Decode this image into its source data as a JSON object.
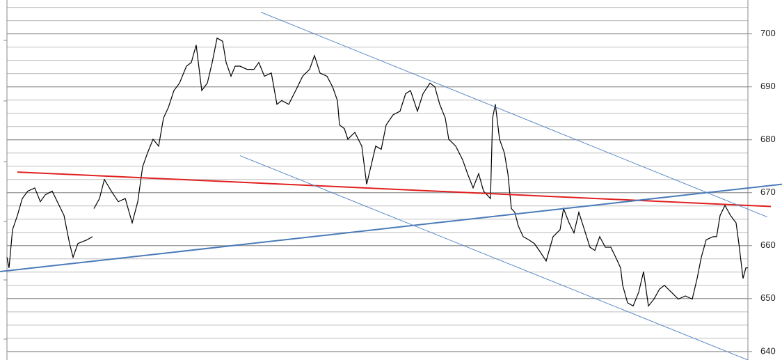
{
  "chart_data": {
    "type": "line",
    "ylim": [
      638.4,
      706.4
    ],
    "yticks": [
      640,
      650,
      660,
      670,
      680,
      690,
      700
    ],
    "grid": true,
    "xlim": [
      0,
      1065
    ],
    "price": {
      "color": "#000000",
      "x": [
        0,
        3,
        8,
        15,
        22,
        30,
        40,
        48,
        55,
        65,
        75,
        82,
        90,
        95,
        102,
        115,
        123,
        124,
        125,
        133,
        140,
        150,
        160,
        170,
        180,
        188,
        195,
        202,
        210,
        218,
        225,
        232,
        240,
        248,
        258,
        265,
        272,
        280,
        288,
        295,
        302,
        310,
        315,
        322,
        328,
        335,
        345,
        355,
        362,
        370,
        380,
        388,
        395,
        405,
        415,
        425,
        435,
        442,
        450,
        460,
        468,
        475,
        478,
        485,
        490,
        500,
        510,
        517,
        523,
        530,
        538,
        545,
        555,
        565,
        573,
        580,
        590,
        598,
        608,
        615,
        622,
        630,
        635,
        645,
        655,
        662,
        670,
        678,
        685,
        695,
        698,
        702,
        708,
        715,
        720,
        725,
        730,
        735,
        742,
        750,
        758,
        765,
        775,
        785,
        795,
        800,
        808,
        815,
        822,
        830,
        838,
        845,
        852,
        860,
        868,
        875,
        882,
        885,
        892,
        900,
        908,
        915,
        922,
        930,
        938,
        945,
        955,
        965,
        975,
        985,
        992,
        998,
        1005,
        1015,
        1020,
        1025,
        1032,
        1040,
        1048,
        1052,
        1058,
        1062,
        1065
      ],
      "values": [
        657.8,
        655.8,
        663.0,
        665.7,
        668.9,
        670.3,
        670.9,
        668.3,
        669.6,
        670.3,
        667.6,
        665.7,
        660.4,
        657.8,
        660.4,
        661.1,
        661.7,
        null,
        667.0,
        668.9,
        672.5,
        670.3,
        668.3,
        668.9,
        664.3,
        668.3,
        674.9,
        677.5,
        680.1,
        678.8,
        684.1,
        686.1,
        689.3,
        690.7,
        693.9,
        694.6,
        697.9,
        689.3,
        690.7,
        694.6,
        699.2,
        698.6,
        694.6,
        692.0,
        693.9,
        693.9,
        693.3,
        693.3,
        694.6,
        692.0,
        692.6,
        686.7,
        687.4,
        686.7,
        689.3,
        692.0,
        693.3,
        695.9,
        692.6,
        692.0,
        690.0,
        687.4,
        682.8,
        682.1,
        680.1,
        681.4,
        678.8,
        671.6,
        674.9,
        678.8,
        678.2,
        682.8,
        684.7,
        685.4,
        688.7,
        689.3,
        685.4,
        688.7,
        690.7,
        690.0,
        686.7,
        684.1,
        680.1,
        678.8,
        676.2,
        673.6,
        670.9,
        673.6,
        670.3,
        668.9,
        684.1,
        686.7,
        680.1,
        677.5,
        673.6,
        667.0,
        666.3,
        663.7,
        661.7,
        661.1,
        660.4,
        659.1,
        657.1,
        661.7,
        663.0,
        667.0,
        664.3,
        662.4,
        666.3,
        663.0,
        659.7,
        659.1,
        661.7,
        659.7,
        659.7,
        657.8,
        655.8,
        652.5,
        649.2,
        648.6,
        651.2,
        655.1,
        648.6,
        649.9,
        651.8,
        652.5,
        651.2,
        649.9,
        650.5,
        649.9,
        653.8,
        657.8,
        661.1,
        661.7,
        661.7,
        665.7,
        667.6,
        665.7,
        664.3,
        660.4,
        653.8,
        655.8,
        655.8
      ]
    },
    "trendlines": [
      {
        "color": "#e02020",
        "x": [
          15,
          1098
        ],
        "values": [
          673.9,
          667.4
        ]
      },
      {
        "color": "#4a7ab8",
        "x": [
          -10,
          1114
        ],
        "values": [
          655.1,
          671.6
        ]
      },
      {
        "color": "#5a8ac6",
        "x": [
          365,
          1093
        ],
        "values": [
          704.1,
          665.4
        ]
      },
      {
        "color": "#5a8ac6",
        "x": [
          335,
          1065
        ],
        "values": [
          677.0,
          638.4
        ]
      }
    ]
  }
}
